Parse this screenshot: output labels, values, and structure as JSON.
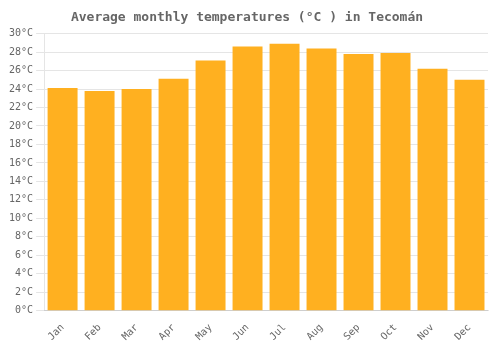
{
  "chart_data": {
    "type": "bar",
    "title": "Average monthly temperatures (°C ) in Tecomán",
    "categories": [
      "Jan",
      "Feb",
      "Mar",
      "Apr",
      "May",
      "Jun",
      "Jul",
      "Aug",
      "Sep",
      "Oct",
      "Nov",
      "Dec"
    ],
    "values": [
      24.1,
      23.8,
      24.0,
      25.1,
      27.1,
      28.6,
      28.9,
      28.4,
      27.8,
      27.9,
      26.2,
      25.0
    ],
    "color": "#FFB020",
    "ylim": [
      0,
      30
    ],
    "yticks": [
      {
        "value": 0,
        "label": "0°C"
      },
      {
        "value": 2,
        "label": "2°C"
      },
      {
        "value": 4,
        "label": "4°C"
      },
      {
        "value": 6,
        "label": "6°C"
      },
      {
        "value": 8,
        "label": "8°C"
      },
      {
        "value": 10,
        "label": "10°C"
      },
      {
        "value": 12,
        "label": "12°C"
      },
      {
        "value": 14,
        "label": "14°C"
      },
      {
        "value": 16,
        "label": "16°C"
      },
      {
        "value": 18,
        "label": "18°C"
      },
      {
        "value": 20,
        "label": "20°C"
      },
      {
        "value": 22,
        "label": "22°C"
      },
      {
        "value": 24,
        "label": "24°C"
      },
      {
        "value": 26,
        "label": "26°C"
      },
      {
        "value": 28,
        "label": "28°C"
      },
      {
        "value": 30,
        "label": "30°C"
      }
    ],
    "grid": true
  }
}
